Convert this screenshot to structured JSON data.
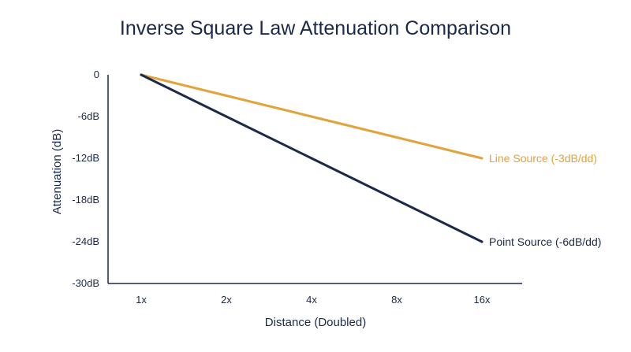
{
  "chart_data": {
    "type": "line",
    "title": "Inverse Square Law Attenuation Comparison",
    "xlabel": "Distance (Doubled)",
    "ylabel": "Attenuation (dB)",
    "categories": [
      "1x",
      "2x",
      "4x",
      "8x",
      "16x"
    ],
    "y_ticks": [
      "0",
      "-6dB",
      "-12dB",
      "-18dB",
      "-24dB",
      "-30dB"
    ],
    "ylim": [
      -30,
      0
    ],
    "grid": false,
    "legend": "inline labels at line ends",
    "series": [
      {
        "name": "Line Source (-3dB/dd)",
        "values": [
          0,
          -3,
          -6,
          -9,
          -12
        ],
        "color": "#e1a33a"
      },
      {
        "name": "Point Source (-6dB/dd)",
        "values": [
          0,
          -6,
          -12,
          -18,
          -24
        ],
        "color": "#1c2a4a"
      }
    ]
  }
}
